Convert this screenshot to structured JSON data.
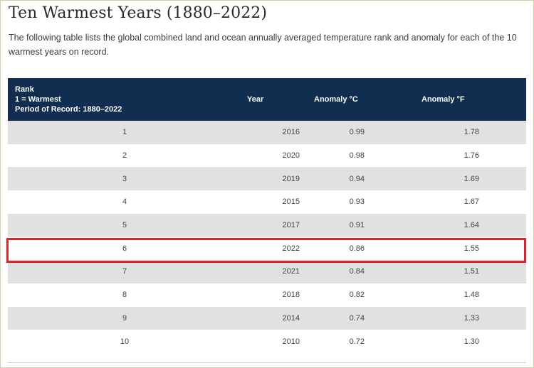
{
  "page": {
    "title": "Ten Warmest Years (1880–2022)",
    "intro": "The following table lists the global combined land and ocean annually averaged temperature rank and anomaly for each of the 10 warmest years on record."
  },
  "table": {
    "headers": {
      "rank_line1": "Rank",
      "rank_line2": "1 = Warmest",
      "rank_line3": "Period of Record: 1880–2022",
      "year": "Year",
      "anomaly_c": "Anomaly °C",
      "anomaly_f": "Anomaly °F"
    },
    "rows": [
      {
        "rank": "1",
        "year": "2016",
        "c": "0.99",
        "f": "1.78"
      },
      {
        "rank": "2",
        "year": "2020",
        "c": "0.98",
        "f": "1.76"
      },
      {
        "rank": "3",
        "year": "2019",
        "c": "0.94",
        "f": "1.69"
      },
      {
        "rank": "4",
        "year": "2015",
        "c": "0.93",
        "f": "1.67"
      },
      {
        "rank": "5",
        "year": "2017",
        "c": "0.91",
        "f": "1.64"
      },
      {
        "rank": "6",
        "year": "2022",
        "c": "0.86",
        "f": "1.55"
      },
      {
        "rank": "7",
        "year": "2021",
        "c": "0.84",
        "f": "1.51"
      },
      {
        "rank": "8",
        "year": "2018",
        "c": "0.82",
        "f": "1.48"
      },
      {
        "rank": "9",
        "year": "2014",
        "c": "0.74",
        "f": "1.33"
      },
      {
        "rank": "10",
        "year": "2010",
        "c": "0.72",
        "f": "1.30"
      }
    ],
    "highlighted_row_rank": "6"
  },
  "colors": {
    "header_bg": "#112e51",
    "stripe_bg": "#e1e1e1",
    "highlight_border": "#e0222b"
  }
}
